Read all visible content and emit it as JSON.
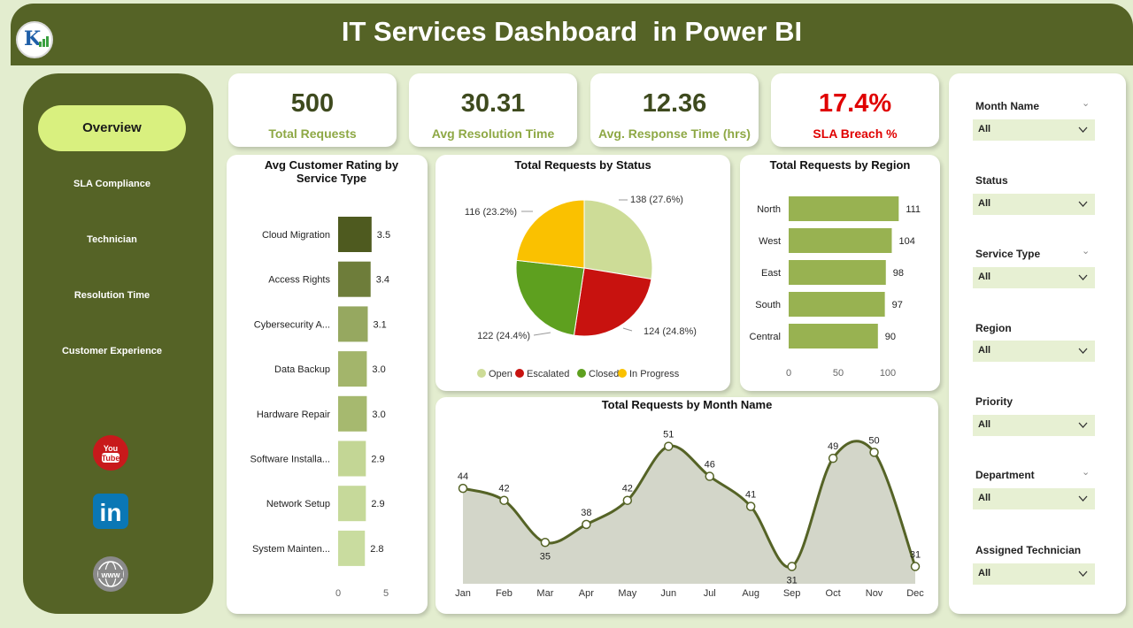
{
  "header": {
    "title": "IT Services Dashboard  in Power BI"
  },
  "nav": {
    "items": [
      "Overview",
      "SLA Compliance",
      "Technician",
      "Resolution Time",
      "Customer Experience"
    ],
    "active": "Overview"
  },
  "social": {
    "youtube_label": "You Tube",
    "linkedin_label": "in",
    "web_label": "www"
  },
  "kpis": [
    {
      "value": "500",
      "label": "Total Requests"
    },
    {
      "value": "30.31",
      "label": "Avg Resolution Time"
    },
    {
      "value": "12.36",
      "label": "Avg. Response Time (hrs)"
    },
    {
      "value": "17.4%",
      "label": "SLA Breach %"
    }
  ],
  "colors": {
    "header": "#556326",
    "accent": "#d9f07f",
    "bar_dark": "#4e5a1f",
    "line": "#556326",
    "area": "#d3d6c9",
    "breach": "#e00000"
  },
  "chart_data": [
    {
      "type": "bar",
      "orientation": "horizontal",
      "title": "Avg Customer Rating by Service Type",
      "categories": [
        "Cloud Migration",
        "Access Rights",
        "Cybersecurity A...",
        "Data Backup",
        "Hardware Repair",
        "Software Installa...",
        "Network Setup",
        "System Mainten..."
      ],
      "values": [
        3.5,
        3.4,
        3.1,
        3.0,
        3.0,
        2.9,
        2.9,
        2.8
      ],
      "labels": [
        "3.5",
        "3.4",
        "3.1",
        "3.0",
        "3.0",
        "2.9",
        "2.9",
        "2.8"
      ],
      "colors": [
        "#4e5a1f",
        "#6e7d3a",
        "#96a860",
        "#a3b56b",
        "#a6b96f",
        "#c3d695",
        "#c6d99a",
        "#c9dc9f"
      ],
      "xlim": [
        0,
        5
      ],
      "xticks": [
        "0",
        "5"
      ]
    },
    {
      "type": "pie",
      "title": "Total Requests by Status",
      "slices": [
        {
          "name": "Open",
          "value": 138,
          "label": "138 (27.6%)",
          "color": "#cddc97"
        },
        {
          "name": "Escalated",
          "value": 124,
          "label": "124 (24.8%)",
          "color": "#c8120f"
        },
        {
          "name": "Closed",
          "value": 122,
          "label": "122 (24.4%)",
          "color": "#5ea01f"
        },
        {
          "name": "In Progress",
          "value": 116,
          "label": "116 (23.2%)",
          "color": "#fac100"
        }
      ],
      "legend": "bottom"
    },
    {
      "type": "bar",
      "orientation": "horizontal",
      "title": "Total Requests by Region",
      "categories": [
        "North",
        "West",
        "East",
        "South",
        "Central"
      ],
      "values": [
        111,
        104,
        98,
        97,
        90
      ],
      "color": "#98b251",
      "xlim": [
        0,
        120
      ],
      "xticks": [
        "0",
        "50",
        "100"
      ]
    },
    {
      "type": "area",
      "title": "Total Requests by Month Name",
      "categories": [
        "Jan",
        "Feb",
        "Mar",
        "Apr",
        "May",
        "Jun",
        "Jul",
        "Aug",
        "Sep",
        "Oct",
        "Nov",
        "Dec"
      ],
      "values": [
        44,
        42,
        35,
        38,
        42,
        51,
        46,
        41,
        31,
        49,
        50,
        31
      ],
      "ylim": [
        29,
        53
      ]
    }
  ],
  "filters": [
    {
      "label": "Month Name",
      "value": "All",
      "has_header_chevron": true
    },
    {
      "label": "Status",
      "value": "All",
      "has_header_chevron": false
    },
    {
      "label": "Service Type",
      "value": "All",
      "has_header_chevron": true
    },
    {
      "label": "Region",
      "value": "All",
      "has_header_chevron": false
    },
    {
      "label": "Priority",
      "value": "All",
      "has_header_chevron": false
    },
    {
      "label": "Department",
      "value": "All",
      "has_header_chevron": true
    },
    {
      "label": "Assigned Technician",
      "value": "All",
      "has_header_chevron": false
    }
  ]
}
